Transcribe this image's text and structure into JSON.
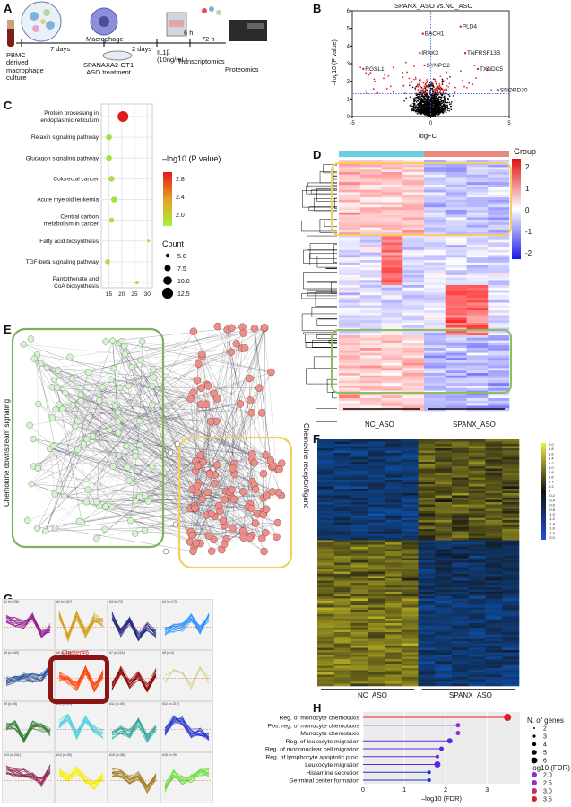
{
  "panelA": {
    "letter": "A",
    "pbmc": "PBMC\nderived\nmacrophage\nculture",
    "days7": "7 days",
    "macrophage": "Macrophage",
    "days2": "2 days",
    "h6": "6 h",
    "h72": "72 h",
    "aso": "SPANAXA2-OT1\nASO treatment",
    "il1b": "IL1β\n(10ng/mL)",
    "transcriptomics": "Transcriptomics",
    "proteomics": "Proteomics"
  },
  "panelB": {
    "letter": "B",
    "title": "SPANX_ASO vs.NC_ASO",
    "ylabel": "–log10 (P value)",
    "xlabel": "logFC",
    "xticks": [
      "-5",
      "0",
      "5"
    ],
    "yticks": [
      "0",
      "1",
      "2",
      "3",
      "4",
      "5",
      "6"
    ],
    "genes": [
      {
        "name": "PLD4",
        "x": 1.9,
        "y": 5.1
      },
      {
        "name": "BACH1",
        "x": -0.5,
        "y": 4.7
      },
      {
        "name": "IRAK3",
        "x": -0.7,
        "y": 3.6
      },
      {
        "name": "TNFRSF13B",
        "x": 2.2,
        "y": 3.6
      },
      {
        "name": "SYNPO2",
        "x": -0.4,
        "y": 2.9
      },
      {
        "name": "RGSL1",
        "x": -4.3,
        "y": 2.7
      },
      {
        "name": "TXNDC5",
        "x": 3.0,
        "y": 2.7
      },
      {
        "name": "SNORD30",
        "x": 4.3,
        "y": 1.5
      }
    ]
  },
  "panelC": {
    "letter": "C",
    "chart_data": {
      "type": "scatter",
      "categories": [
        "Protein processing in\nendoplasmic reticulum",
        "Relaxin signaling pathway",
        "Glucagon signaling pathway",
        "Colorectal cancer",
        "Acute myeloid leukemia",
        "Central carbon\nmetabolism in cancer",
        "Fatty acid biosynthesis",
        "TGF-beta signaling pathway",
        "Pantothenate and\nCoA biosynthesis"
      ],
      "count": [
        12,
        6,
        6,
        6,
        6,
        5,
        2,
        5,
        3
      ],
      "neglogp": [
        3.2,
        2.0,
        1.9,
        1.9,
        1.9,
        1.9,
        1.7,
        1.8,
        1.7
      ],
      "x": [
        20.5,
        15,
        15,
        16,
        17,
        16,
        30.5,
        14.5,
        26
      ],
      "xticks": [
        15,
        20,
        25,
        30
      ],
      "xlim": [
        12,
        32
      ]
    },
    "legend_color_title": "–log10 (P value)",
    "legend_color_ticks": [
      "2.8",
      "2.4",
      "2.0"
    ],
    "legend_size_title": "Count",
    "legend_size_ticks": [
      "5.0",
      "7.5",
      "10.0",
      "12.5"
    ]
  },
  "panelD": {
    "letter": "D",
    "legend_title": "Group",
    "legend_ticks": [
      "2",
      "1",
      "0",
      "-1",
      "-2"
    ],
    "group1": "NC_ASO",
    "group2": "SPANX_ASO"
  },
  "panelE": {
    "letter": "E",
    "left_label": "Chemokine downstream signaling",
    "right_label": "Chemokine receptor/ligand"
  },
  "panelF": {
    "letter": "F",
    "group1": "NC_ASO",
    "group2": "SPANX_ASO",
    "scale": [
      "2.0",
      "1.8",
      "1.6",
      "1.4",
      "1.2",
      "1.0",
      "0.8",
      "0.6",
      "0.4",
      "0.2",
      "0",
      "-0.2",
      "-0.4",
      "-0.6",
      "-0.8",
      "-1.0",
      "-1.2",
      "-1.4",
      "-1.6",
      "-1.8",
      "-2.0"
    ]
  },
  "panelG": {
    "letter": "G",
    "highlight": "Cluster#6",
    "clusters": [
      {
        "t": "#1 (n=228)",
        "c": "#8b1a8b"
      },
      {
        "t": "#2 (n=167)",
        "c": "#d4a017"
      },
      {
        "t": "#3 (n=73)",
        "c": "#1a237e"
      },
      {
        "t": "#4 (n=173)",
        "c": "#1e90ff"
      },
      {
        "t": "#5 (n=169)",
        "c": "#1e4f9a"
      },
      {
        "t": "#6 (n=138)",
        "c": "#ff3d00"
      },
      {
        "t": "#7 (n=116)",
        "c": "#8b0000"
      },
      {
        "t": "#8 (n=2)",
        "c": "#b8c84a"
      },
      {
        "t": "#9 (n=95)",
        "c": "#2e7d32"
      },
      {
        "t": "#10 (n=29)",
        "c": "#4dd0e1"
      },
      {
        "t": "#11 (n=49)",
        "c": "#26a69a"
      },
      {
        "t": "#12 (n=217)",
        "c": "#1e2fd0"
      },
      {
        "t": "#13 (n=241)",
        "c": "#8b1a4a"
      },
      {
        "t": "#14 (n=30)",
        "c": "#f7f000"
      },
      {
        "t": "#15 (n=38)",
        "c": "#9c7a14"
      },
      {
        "t": "#16 (n=39)",
        "c": "#66dd33"
      }
    ]
  },
  "panelH": {
    "letter": "H",
    "chart_data": {
      "type": "lollipop",
      "categories": [
        "Reg. of monocyte chemotaxis",
        "Pos. reg. of monocyte chemotaxis",
        "Monocyte chemotaxis",
        "Reg. of leukocyte migration",
        "Reg. of mononuclear cell migration",
        "Reg. of lymphocyte apoptotic proc.",
        "Leukocyte migration",
        "Histamine secretion",
        "Germinal center formation"
      ],
      "values": [
        3.5,
        2.3,
        2.3,
        2.1,
        1.9,
        1.8,
        1.8,
        1.6,
        1.6
      ],
      "genes": [
        6,
        3,
        3,
        4,
        3,
        2,
        5,
        2,
        2
      ],
      "xlabel": "–log10 (FDR)",
      "xticks": [
        "0",
        "1",
        "2",
        "3"
      ],
      "xlim": [
        0,
        3.8
      ]
    },
    "legend_size_title": "N. of genes",
    "legend_size_ticks": [
      "2",
      "3",
      "4",
      "5",
      "6"
    ],
    "legend_color_title": "–log10 (FDR)",
    "legend_color_ticks": [
      "2.0",
      "2.5",
      "3.0",
      "3.5"
    ]
  }
}
